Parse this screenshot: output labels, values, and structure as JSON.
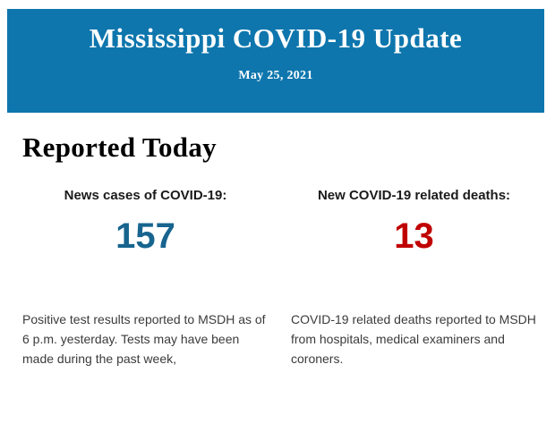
{
  "header": {
    "title": "Mississippi COVID-19 Update",
    "date": "May 25, 2021",
    "background_color": "#0e76ad",
    "text_color": "#ffffff"
  },
  "section_heading": "Reported Today",
  "stats": [
    {
      "label": "News cases of COVID-19:",
      "value": "157",
      "value_color": "#17648f",
      "description": "Positive test results reported to MSDH as of 6 p.m. yesterday. Tests may have been made during the past week,"
    },
    {
      "label": "New COVID-19 related deaths:",
      "value": "13",
      "value_color": "#c00000",
      "description": "COVID-19 related deaths reported to MSDH from hospitals, medical examiners and coroners."
    }
  ]
}
